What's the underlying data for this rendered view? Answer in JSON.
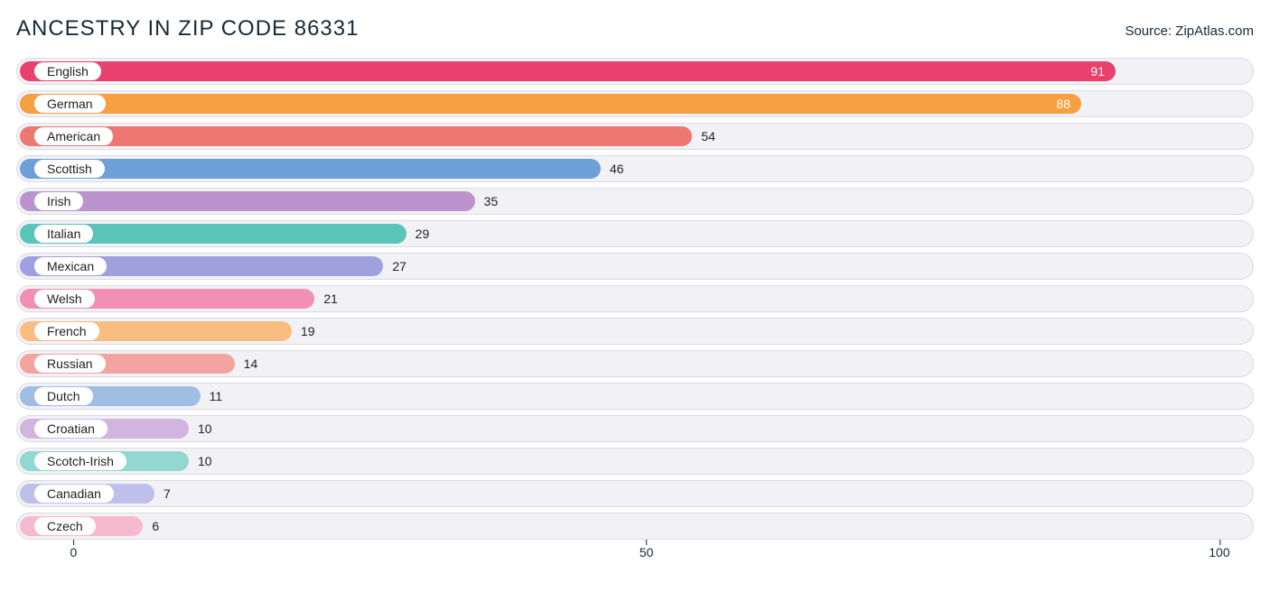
{
  "header": {
    "title": "ANCESTRY IN ZIP CODE 86331",
    "source": "Source: ZipAtlas.com"
  },
  "chart": {
    "type": "bar-horizontal",
    "background_color": "#ffffff",
    "track_bg": "#f2f1f6",
    "track_border": "#dadbe0",
    "label_pill_bg": "#ffffff",
    "label_fontsize": 14,
    "value_fontsize": 14,
    "title_fontsize": 24,
    "title_color": "#162a39",
    "xlim": [
      -5,
      103
    ],
    "xticks": [
      0,
      50,
      100
    ],
    "bar_inner_origin_value": -5,
    "value_inside_threshold": 80,
    "value_inside_color": "#ffffff",
    "value_outside_color": "#242424",
    "rows": [
      {
        "label": "English",
        "value": 91,
        "color": "#e9416e"
      },
      {
        "label": "German",
        "value": 88,
        "color": "#f6a041"
      },
      {
        "label": "American",
        "value": 54,
        "color": "#ee7772"
      },
      {
        "label": "Scottish",
        "value": 46,
        "color": "#6e9fd6"
      },
      {
        "label": "Irish",
        "value": 35,
        "color": "#bb93cd"
      },
      {
        "label": "Italian",
        "value": 29,
        "color": "#59c4ba"
      },
      {
        "label": "Mexican",
        "value": 27,
        "color": "#9ea1dd"
      },
      {
        "label": "Welsh",
        "value": 21,
        "color": "#f290b3"
      },
      {
        "label": "French",
        "value": 19,
        "color": "#f9bd82"
      },
      {
        "label": "Russian",
        "value": 14,
        "color": "#f4a3a1"
      },
      {
        "label": "Dutch",
        "value": 11,
        "color": "#9fbee1"
      },
      {
        "label": "Croatian",
        "value": 10,
        "color": "#d1b5de"
      },
      {
        "label": "Scotch-Irish",
        "value": 10,
        "color": "#92d7d0"
      },
      {
        "label": "Canadian",
        "value": 7,
        "color": "#bec0e9"
      },
      {
        "label": "Czech",
        "value": 6,
        "color": "#f7b9cd"
      }
    ]
  }
}
